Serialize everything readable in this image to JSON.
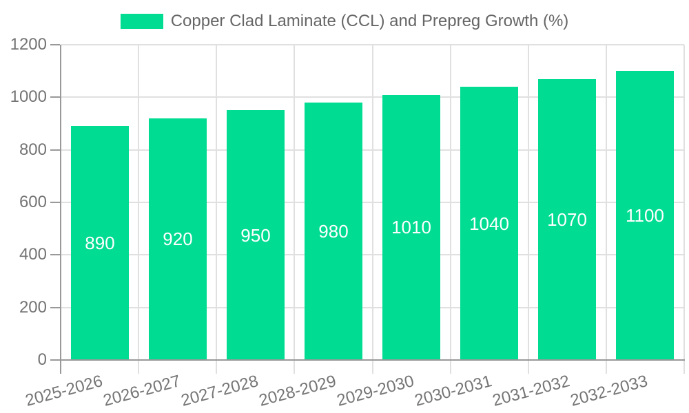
{
  "legend": {
    "label": "Copper Clad Laminate (CCL) and Prepreg Growth (%)"
  },
  "chart_data": {
    "type": "bar",
    "title": "",
    "xlabel": "",
    "ylabel": "",
    "categories": [
      "2025-2026",
      "2026-2027",
      "2027-2028",
      "2028-2029",
      "2029-2030",
      "2030-2031",
      "2031-2032",
      "2032-2033"
    ],
    "series": [
      {
        "name": "Copper Clad Laminate (CCL) and Prepreg Growth (%)",
        "values": [
          890,
          920,
          950,
          980,
          1010,
          1040,
          1070,
          1100
        ]
      }
    ],
    "value_labels_shown": true,
    "ylim": [
      0,
      1200
    ],
    "yticks": [
      0,
      200,
      400,
      600,
      800,
      1000,
      1200
    ],
    "grid": true,
    "legend_position": "top-center",
    "x_label_rotation_deg": -15,
    "colors": {
      "bar": "#00DC92",
      "value_label": "#ffffff",
      "axis": "#999999",
      "gridline": "#e0e0e0",
      "tick_label": "#757575",
      "legend_text": "#666666",
      "background": "#ffffff"
    }
  }
}
